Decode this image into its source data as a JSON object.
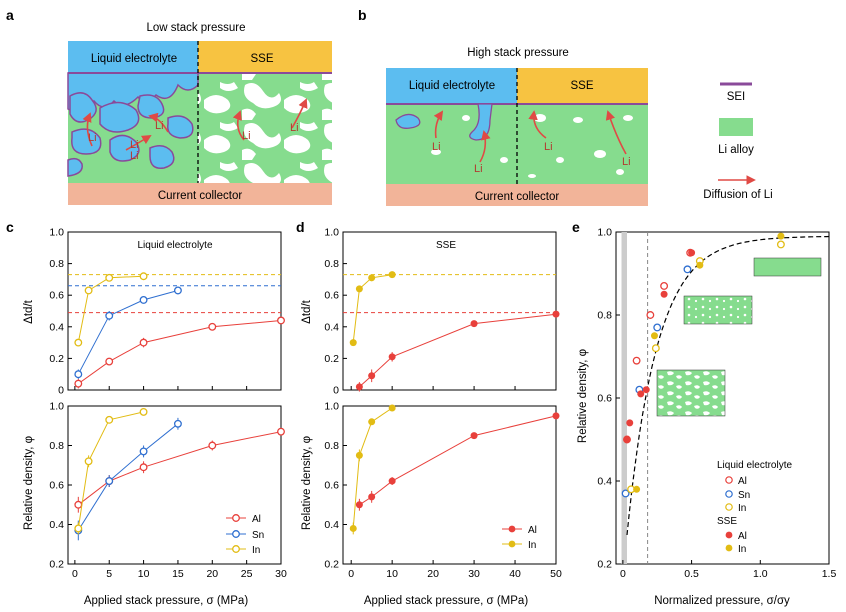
{
  "colors": {
    "al": "#e8403b",
    "sn": "#2f6fd0",
    "in": "#e2bc14",
    "electrolyte": "#5cbdf0",
    "sse": "#f7c341",
    "alloy": "#86dc8e",
    "sei": "#8a4a9a",
    "collector": "#f2b499",
    "arrow": "#e04a45"
  },
  "panel_a": {
    "letter": "a",
    "title": "Low stack pressure",
    "electrolyte_label": "Liquid electrolyte",
    "sse_label": "SSE",
    "collector_label": "Current collector",
    "li_labels": [
      "Li",
      "Li",
      "Li",
      "Li",
      "Li",
      "Li"
    ]
  },
  "panel_b": {
    "letter": "b",
    "title": "High stack pressure",
    "electrolyte_label": "Liquid electrolyte",
    "sse_label": "SSE",
    "collector_label": "Current collector",
    "li_labels": [
      "Li",
      "Li",
      "Li",
      "Li"
    ]
  },
  "legend_right": {
    "sei": "SEI",
    "alloy": "Li alloy",
    "diffusion": "Diffusion of Li"
  },
  "panel_c": {
    "letter": "c",
    "subtitle": "Liquid electrolyte"
  },
  "panel_d": {
    "letter": "d",
    "subtitle": "SSE"
  },
  "panel_e": {
    "letter": "e",
    "legend_liquid_title": "Liquid electrolyte",
    "legend_sse_title": "SSE",
    "legend_items_liquid": [
      "Al",
      "Sn",
      "In"
    ],
    "legend_items_sse": [
      "Al",
      "In"
    ]
  },
  "legend_c": [
    "Al",
    "Sn",
    "In"
  ],
  "legend_d": [
    "Al",
    "In"
  ],
  "chart_data": [
    {
      "id": "c-top",
      "type": "line",
      "title": "Liquid electrolyte",
      "ylabel": "Δtd/t",
      "xlim": [
        0,
        30
      ],
      "ylim": [
        0,
        1.0
      ],
      "yticks": [
        "0",
        "0.2",
        "0.4",
        "0.6",
        "0.8",
        "1.0"
      ],
      "series": [
        {
          "name": "Al",
          "marker": "open",
          "x": [
            0.5,
            5,
            10,
            20,
            30
          ],
          "y": [
            0.04,
            0.18,
            0.3,
            0.4,
            0.44
          ],
          "err": [
            0.03,
            0.02,
            0.03,
            0.015,
            0.015
          ]
        },
        {
          "name": "Sn",
          "marker": "open",
          "x": [
            0.5,
            5,
            10,
            15
          ],
          "y": [
            0.1,
            0.47,
            0.57,
            0.63
          ],
          "err": [
            0.03,
            0.03,
            0.015,
            0.025
          ]
        },
        {
          "name": "In",
          "marker": "open",
          "x": [
            0.5,
            2,
            5,
            10
          ],
          "y": [
            0.3,
            0.63,
            0.71,
            0.72
          ],
          "err": [
            0.02,
            0.015,
            0.01,
            0.01
          ]
        }
      ],
      "hlines": [
        {
          "y": 0.73,
          "color": "in"
        },
        {
          "y": 0.66,
          "color": "sn"
        },
        {
          "y": 0.49,
          "color": "al"
        }
      ]
    },
    {
      "id": "c-bottom",
      "type": "line",
      "ylabel": "Relative density, φ",
      "xlabel": "Applied stack pressure, σ (MPa)",
      "xlim": [
        0,
        30
      ],
      "ylim": [
        0.2,
        1.0
      ],
      "xticks": [
        "0",
        "5",
        "10",
        "15",
        "20",
        "25",
        "30"
      ],
      "yticks": [
        "0.2",
        "0.4",
        "0.6",
        "0.8",
        "1.0"
      ],
      "series": [
        {
          "name": "Al",
          "marker": "open",
          "x": [
            0.5,
            5,
            10,
            20,
            30
          ],
          "y": [
            0.5,
            0.62,
            0.69,
            0.8,
            0.87
          ],
          "err": [
            0.04,
            0.03,
            0.03,
            0.025,
            0.01
          ]
        },
        {
          "name": "Sn",
          "marker": "open",
          "x": [
            0.5,
            5,
            10,
            15
          ],
          "y": [
            0.37,
            0.62,
            0.77,
            0.91
          ],
          "err": [
            0.05,
            0.03,
            0.03,
            0.03
          ]
        },
        {
          "name": "In",
          "marker": "open",
          "x": [
            0.5,
            2,
            5,
            10
          ],
          "y": [
            0.38,
            0.72,
            0.93,
            0.97
          ],
          "err": [
            0.03,
            0.03,
            0.015,
            0.015
          ]
        }
      ]
    },
    {
      "id": "d-top",
      "type": "line",
      "title": "SSE",
      "ylabel": "Δtd/t",
      "xlim": [
        0,
        50
      ],
      "ylim": [
        0,
        1.0
      ],
      "yticks": [
        "0",
        "0.2",
        "0.4",
        "0.6",
        "0.8",
        "1.0"
      ],
      "series": [
        {
          "name": "Al",
          "marker": "filled",
          "x": [
            2,
            5,
            10,
            30,
            50
          ],
          "y": [
            0.02,
            0.09,
            0.21,
            0.42,
            0.48
          ],
          "err": [
            0.03,
            0.04,
            0.03,
            0.01,
            0.01
          ]
        },
        {
          "name": "In",
          "marker": "filled",
          "x": [
            0.5,
            2,
            5,
            10
          ],
          "y": [
            0.3,
            0.64,
            0.71,
            0.73
          ],
          "err": [
            0.02,
            0.01,
            0.01,
            0.01
          ]
        }
      ],
      "hlines": [
        {
          "y": 0.73,
          "color": "in"
        },
        {
          "y": 0.49,
          "color": "al"
        }
      ]
    },
    {
      "id": "d-bottom",
      "type": "line",
      "ylabel": "Relative density, φ",
      "xlabel": "Applied stack pressure, σ (MPa)",
      "xlim": [
        0,
        50
      ],
      "ylim": [
        0.2,
        1.0
      ],
      "xticks": [
        "0",
        "10",
        "20",
        "30",
        "40",
        "50"
      ],
      "yticks": [
        "0.2",
        "0.4",
        "0.6",
        "0.8",
        "1.0"
      ],
      "series": [
        {
          "name": "Al",
          "marker": "filled",
          "x": [
            2,
            5,
            10,
            30,
            50
          ],
          "y": [
            0.5,
            0.54,
            0.62,
            0.85,
            0.95
          ],
          "err": [
            0.03,
            0.03,
            0.02,
            0.01,
            0.01
          ]
        },
        {
          "name": "In",
          "marker": "filled",
          "x": [
            0.5,
            2,
            5,
            10
          ],
          "y": [
            0.38,
            0.75,
            0.92,
            0.99
          ],
          "err": [
            0.03,
            0.03,
            0.015,
            0.01
          ]
        }
      ]
    },
    {
      "id": "e",
      "type": "scatter",
      "ylabel": "Relative density, φ",
      "xlabel": "Normalized pressure, σ/σy",
      "xlim": [
        0,
        1.5
      ],
      "ylim": [
        0.2,
        1.0
      ],
      "xticks": [
        "0",
        "0.5",
        "1.0",
        "1.5"
      ],
      "yticks": [
        "0.2",
        "0.4",
        "0.6",
        "0.8",
        "1.0"
      ],
      "curve_note": "dashed fit curve rising from about (0.03, 0.27) to about (1.5, 0.99)",
      "vline_dashed_x": 0.18,
      "shaded_x_range": [
        -0.01,
        0.03
      ],
      "series": [
        {
          "name": "Liquid Al",
          "marker": "open",
          "color": "al",
          "x": [
            0.03,
            0.1,
            0.2,
            0.3,
            0.49
          ],
          "y": [
            0.5,
            0.69,
            0.8,
            0.87,
            0.95
          ]
        },
        {
          "name": "Liquid Sn",
          "marker": "open",
          "color": "sn",
          "x": [
            0.02,
            0.12,
            0.25,
            0.47
          ],
          "y": [
            0.37,
            0.62,
            0.77,
            0.91
          ]
        },
        {
          "name": "Liquid In",
          "marker": "open",
          "color": "in",
          "x": [
            0.06,
            0.24,
            0.56,
            1.15
          ],
          "y": [
            0.38,
            0.72,
            0.93,
            0.97
          ]
        },
        {
          "name": "SSE Al",
          "marker": "filled",
          "color": "al",
          "x": [
            0.03,
            0.05,
            0.13,
            0.17,
            0.3,
            0.5
          ],
          "y": [
            0.5,
            0.54,
            0.61,
            0.62,
            0.85,
            0.95
          ]
        },
        {
          "name": "SSE In",
          "marker": "filled",
          "color": "in",
          "x": [
            0.1,
            0.23,
            0.56,
            1.15
          ],
          "y": [
            0.38,
            0.75,
            0.92,
            0.99
          ]
        }
      ]
    }
  ]
}
